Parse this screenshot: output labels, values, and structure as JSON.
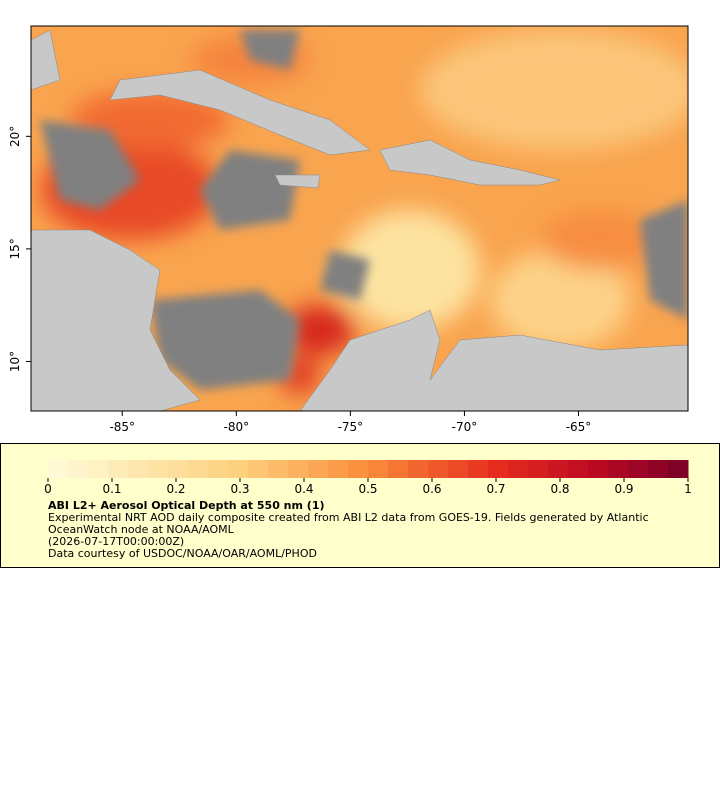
{
  "map": {
    "x_axis": {
      "lim": [
        -89,
        -60.2
      ],
      "ticks": [
        {
          "value": -85,
          "label": "-85°"
        },
        {
          "value": -80,
          "label": "-80°"
        },
        {
          "value": -75,
          "label": "-75°"
        },
        {
          "value": -70,
          "label": "-70°"
        },
        {
          "value": -65,
          "label": "-65°"
        }
      ]
    },
    "y_axis": {
      "lim": [
        7.8,
        24.9
      ],
      "ticks": [
        {
          "value": 10,
          "label": "10°"
        },
        {
          "value": 15,
          "label": "15°"
        },
        {
          "value": 20,
          "label": "20°"
        }
      ]
    }
  },
  "colorbar": {
    "lim": [
      0,
      1
    ],
    "ticks": [
      0,
      0.1,
      0.2,
      0.3,
      0.4,
      0.5,
      0.6,
      0.7,
      0.8,
      0.9,
      1
    ]
  },
  "legend": {
    "title": "ABI L2+ Aerosol Optical Depth at 550 nm (1)",
    "description": "Experimental NRT AOD daily composite created from ABI L2 data from GOES-19. Fields generated by Atlantic OceanWatch node at NOAA/AOML",
    "time": "(2026-07-17T00:00:00Z)",
    "credit": "Data courtesy of USDOC/NOAA/OAR/AOML/PHOD"
  }
}
